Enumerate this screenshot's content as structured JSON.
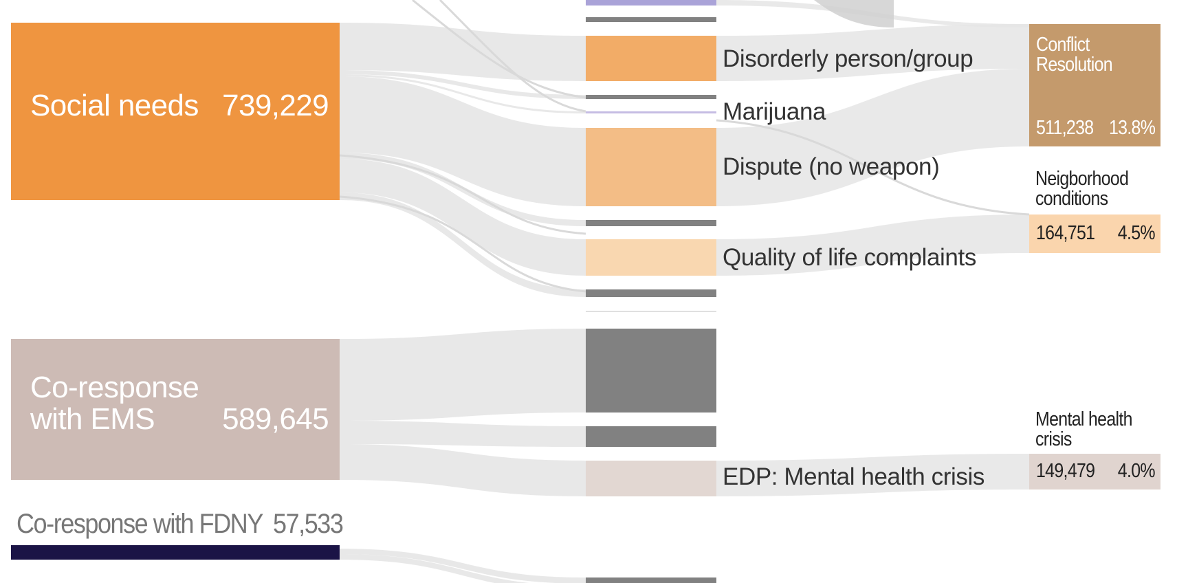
{
  "colors": {
    "social_needs": "#ef9540",
    "co_response_ems": "#cdbbb5",
    "co_response_fdny": "#1b1446",
    "conflict_resolution": "#c49a6c",
    "neighborhood_conditions": "#fad5ad",
    "mental_health_crisis": "#e0d4cf",
    "disorderly": "#f2ac67",
    "dispute": "#f3bd86",
    "quality_of_life": "#f9d7b0",
    "edp": "#e2d7d2",
    "marijuana": "#c5bde3",
    "lavender_bar": "#aaa3d8",
    "gray_bar": "#818181",
    "flow": "#e5e5e5",
    "flow_dark": "#d0d0d0",
    "text": "#333333"
  },
  "sources": [
    {
      "id": "social_needs",
      "label": "Social needs",
      "value": "739,229"
    },
    {
      "id": "co_response_ems",
      "label_lines": [
        "Co-response",
        "with EMS"
      ],
      "value": "589,645"
    },
    {
      "id": "co_response_fdny",
      "label": "Co-response with FDNY",
      "value": "57,533"
    }
  ],
  "categories": [
    {
      "id": "disorderly",
      "label": "Disorderly person/group"
    },
    {
      "id": "marijuana",
      "label": "Marijuana"
    },
    {
      "id": "dispute",
      "label": "Dispute (no weapon)"
    },
    {
      "id": "quality_of_life",
      "label": "Quality of life complaints"
    },
    {
      "id": "edp",
      "label": "EDP: Mental health crisis"
    }
  ],
  "outcomes": [
    {
      "id": "conflict_resolution",
      "label_lines": [
        "Conflict",
        "Resolution"
      ],
      "value": "511,238",
      "percent": "13.8%"
    },
    {
      "id": "neighborhood_conditions",
      "label_lines": [
        "Neigborhood",
        "conditions"
      ],
      "value": "164,751",
      "percent": "4.5%"
    },
    {
      "id": "mental_health_crisis",
      "label_lines": [
        "Mental health",
        "crisis"
      ],
      "value": "149,479",
      "percent": "4.0%"
    }
  ]
}
